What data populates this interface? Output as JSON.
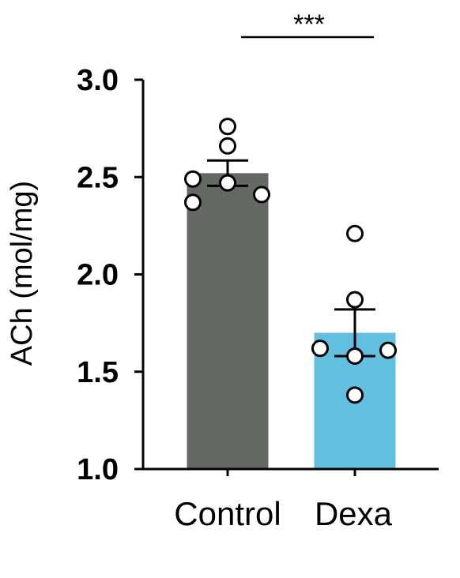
{
  "chart_data": {
    "type": "bar",
    "title": "",
    "xlabel": "",
    "ylabel": "ACh (mol/mg)",
    "ylim": [
      1.0,
      3.0
    ],
    "yticks": [
      "1.0",
      "1.5",
      "2.0",
      "2.5",
      "3.0"
    ],
    "yticks_values": [
      1.0,
      1.5,
      2.0,
      2.5,
      3.0
    ],
    "categories": [
      "Control",
      "Dexa"
    ],
    "values": [
      2.52,
      1.7
    ],
    "sem": [
      0.065,
      0.12
    ],
    "points": [
      [
        2.76,
        2.66,
        2.49,
        2.47,
        2.37,
        2.41
      ],
      [
        2.21,
        1.87,
        1.62,
        1.58,
        1.61,
        1.38
      ]
    ],
    "colors": [
      "#646963",
      "#63bfe0"
    ],
    "significance": {
      "label": "***",
      "between": [
        "Control",
        "Dexa"
      ]
    },
    "grid": false,
    "legend": "none"
  }
}
